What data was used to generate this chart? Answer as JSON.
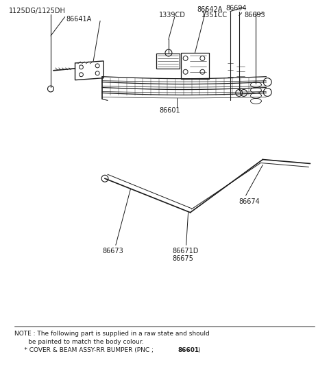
{
  "bg_color": "#ffffff",
  "line_color": "#1a1a1a",
  "text_color": "#1a1a1a",
  "fig_width": 4.8,
  "fig_height": 5.7,
  "note_line1": "NOTE : The following part is supplied in a raw state and should",
  "note_line2": "       be painted to match the body colour.",
  "note_line3_a": "     * COVER & BEAM ASSY-RR BUMPER (PNC ; ",
  "note_line3_b": "86601",
  "note_line3_c": ")"
}
